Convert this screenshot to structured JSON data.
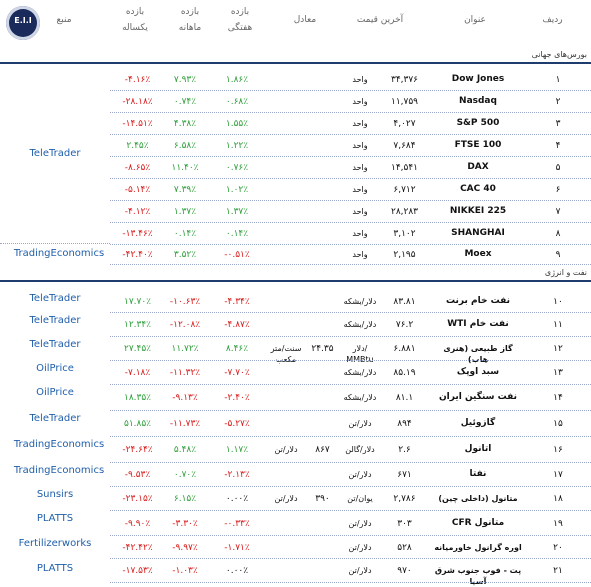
{
  "header": {
    "radif": "ردیف",
    "onvan": "عنوان",
    "akharin_gheymat": "آخرین قیمت",
    "moadel": "معادل",
    "bazeh_haftegi": [
      "بازده",
      "هفتگی"
    ],
    "bazeh_mahaneh": [
      "بازده",
      "ماهانه"
    ],
    "bazeh_yeksaleh": [
      "بازده",
      "یکساله"
    ],
    "manba": "منبع",
    "logo_text": "E.I.I"
  },
  "sections": {
    "world_markets": "بورس‌های جهانی",
    "oil_energy": "نفت و انرژی"
  },
  "rows": [
    {
      "n": "۱",
      "title": "Dow Jones",
      "latin": true,
      "price": "۳۴,۳۷۶",
      "unit": "واحد",
      "eq": "",
      "eq_unit": "",
      "w": "۱.۸۶٪",
      "m": "۷.۹۳٪",
      "y": "-۴.۱۶٪",
      "wc": "pos",
      "mc": "pos",
      "yc": "neg"
    },
    {
      "n": "۲",
      "title": "Nasdaq",
      "latin": true,
      "price": "۱۱,۷۵۹",
      "unit": "واحد",
      "eq": "",
      "eq_unit": "",
      "w": "۰.۶۸٪",
      "m": "۰.۷۴٪",
      "y": "-۲۸.۱۸٪",
      "wc": "pos",
      "mc": "pos",
      "yc": "neg"
    },
    {
      "n": "۳",
      "title": "S&P 500",
      "latin": true,
      "price": "۴,۰۲۷",
      "unit": "واحد",
      "eq": "",
      "eq_unit": "",
      "w": "۱.۵۵٪",
      "m": "۴.۳۸٪",
      "y": "-۱۴.۵۱٪",
      "wc": "pos",
      "mc": "pos",
      "yc": "neg"
    },
    {
      "n": "۴",
      "title": "FTSE 100",
      "latin": true,
      "price": "۷,۶۸۴",
      "unit": "واحد",
      "eq": "",
      "eq_unit": "",
      "w": "۱.۲۲٪",
      "m": "۶.۵۸٪",
      "y": "۲.۴۵٪",
      "wc": "pos",
      "mc": "pos",
      "yc": "pos"
    },
    {
      "n": "۵",
      "title": "DAX",
      "latin": true,
      "price": "۱۴,۵۴۱",
      "unit": "واحد",
      "eq": "",
      "eq_unit": "",
      "w": "۰.۷۶٪",
      "m": "۱۱.۴۰٪",
      "y": "-۸.۶۵٪",
      "wc": "pos",
      "mc": "pos",
      "yc": "neg"
    },
    {
      "n": "۶",
      "title": "CAC 40",
      "latin": true,
      "price": "۶,۷۱۲",
      "unit": "واحد",
      "eq": "",
      "eq_unit": "",
      "w": "۱.۰۲٪",
      "m": "۷.۳۹٪",
      "y": "-۵.۱۴٪",
      "wc": "pos",
      "mc": "pos",
      "yc": "neg"
    },
    {
      "n": "۷",
      "title": "NIKKEI 225",
      "latin": true,
      "price": "۲۸,۲۸۳",
      "unit": "واحد",
      "eq": "",
      "eq_unit": "",
      "w": "۱.۳۷٪",
      "m": "۱.۳۷٪",
      "y": "-۴.۱۲٪",
      "wc": "pos",
      "mc": "pos",
      "yc": "neg"
    },
    {
      "n": "۸",
      "title": "SHANGHAI",
      "latin": true,
      "price": "۳,۱۰۲",
      "unit": "واحد",
      "eq": "",
      "eq_unit": "",
      "w": "۰.۱۴٪",
      "m": "۰.۱۴٪",
      "y": "-۱۳.۴۶٪",
      "wc": "pos",
      "mc": "pos",
      "yc": "neg"
    },
    {
      "n": "۹",
      "title": "Moex",
      "latin": true,
      "price": "۲,۱۹۵",
      "unit": "واحد",
      "eq": "",
      "eq_unit": "",
      "w": "-۰.۵۱٪",
      "m": "۳.۵۲٪",
      "y": "-۴۲.۴۰٪",
      "wc": "neg",
      "mc": "pos",
      "yc": "neg"
    },
    {
      "n": "۱۰",
      "title": "نفت خام برنت",
      "latin": false,
      "price": "۸۳.۸۱",
      "unit": "دلار/بشکه",
      "eq": "",
      "eq_unit": "",
      "w": "-۴.۳۴٪",
      "m": "-۱۰.۶۳٪",
      "y": "۱۷.۷۰٪",
      "wc": "neg",
      "mc": "neg",
      "yc": "pos"
    },
    {
      "n": "۱۱",
      "title": "نفت خام WTI",
      "latin": false,
      "price": "۷۶.۲",
      "unit": "دلار/بشکه",
      "eq": "",
      "eq_unit": "",
      "w": "-۴.۸۷٪",
      "m": "-۱۲.۰۸٪",
      "y": "۱۲.۳۴٪",
      "wc": "neg",
      "mc": "neg",
      "yc": "pos"
    },
    {
      "n": "۱۲",
      "title": "گاز طبیعی (هنری هاب)",
      "latin": false,
      "price": "۶.۸۸۱",
      "unit": "دلار/ MMBtu",
      "eq": "۲۴.۳۵",
      "eq_unit": "سنت/متر مکعب",
      "w": "۸.۴۶٪",
      "m": "۱۱.۷۲٪",
      "y": "۲۷.۴۵٪",
      "wc": "pos",
      "mc": "pos",
      "yc": "pos"
    },
    {
      "n": "۱۳",
      "title": "سبد اوپک",
      "latin": false,
      "price": "۸۵.۱۹",
      "unit": "دلار/بشکه",
      "eq": "",
      "eq_unit": "",
      "w": "-۷.۷۰٪",
      "m": "-۱۱.۳۲٪",
      "y": "-۷.۱۸٪",
      "wc": "neg",
      "mc": "neg",
      "yc": "neg"
    },
    {
      "n": "۱۴",
      "title": "نفت سنگین ایران",
      "latin": false,
      "price": "۸۱.۱",
      "unit": "دلار/بشکه",
      "eq": "",
      "eq_unit": "",
      "w": "-۲.۴۰٪",
      "m": "-۹.۱۳٪",
      "y": "۱۸.۳۵٪",
      "wc": "neg",
      "mc": "neg",
      "yc": "pos"
    },
    {
      "n": "۱۵",
      "title": "گازوئیل",
      "latin": false,
      "price": "۸۹۴",
      "unit": "دلار/تن",
      "eq": "",
      "eq_unit": "",
      "w": "-۵.۲۷٪",
      "m": "-۱۱.۷۳٪",
      "y": "۵۱.۸۵٪",
      "wc": "neg",
      "mc": "neg",
      "yc": "pos"
    },
    {
      "n": "۱۶",
      "title": "اتانول",
      "latin": false,
      "price": "۲.۶",
      "unit": "دلار/گالن",
      "eq": "۸۶۷",
      "eq_unit": "دلار/تن",
      "w": "۱.۱۷٪",
      "m": "۵.۴۸٪",
      "y": "-۲۴.۶۴٪",
      "wc": "pos",
      "mc": "pos",
      "yc": "neg"
    },
    {
      "n": "۱۷",
      "title": "نفتا",
      "latin": false,
      "price": "۶۷۱",
      "unit": "دلار/تن",
      "eq": "",
      "eq_unit": "",
      "w": "-۲.۱۳٪",
      "m": "۰.۷۰٪",
      "y": "-۹.۵۳٪",
      "wc": "neg",
      "mc": "pos",
      "yc": "neg"
    },
    {
      "n": "۱۸",
      "title": "متانول (داخلی چین)",
      "latin": false,
      "price": "۲,۷۸۶",
      "unit": "یوان/تن",
      "eq": "۳۹۰",
      "eq_unit": "دلار/تن",
      "w": "۰.۰۰٪",
      "m": "۶.۱۵٪",
      "y": "-۲۳.۱۵٪",
      "wc": "zero",
      "mc": "pos",
      "yc": "neg"
    },
    {
      "n": "۱۹",
      "title": "متانول CFR",
      "latin": false,
      "price": "۳۰۳",
      "unit": "دلار/تن",
      "eq": "",
      "eq_unit": "",
      "w": "-۰.۳۳٪",
      "m": "-۳.۳۰٪",
      "y": "-۹.۹۰٪",
      "wc": "neg",
      "mc": "neg",
      "yc": "neg"
    },
    {
      "n": "۲۰",
      "title": "اوره گرانول خاورمیانه",
      "latin": false,
      "price": "۵۲۸",
      "unit": "دلار/تن",
      "eq": "",
      "eq_unit": "",
      "w": "-۱.۷۱٪",
      "m": "-۹.۹۷٪",
      "y": "-۴۲.۴۲٪",
      "wc": "neg",
      "mc": "neg",
      "yc": "neg"
    },
    {
      "n": "۲۱",
      "title": "پت - فوب جنوب شرق آسیا",
      "latin": false,
      "price": "۹۷۰",
      "unit": "دلار/تن",
      "eq": "",
      "eq_unit": "",
      "w": "۰.۰۰٪",
      "m": "-۱.۰۳٪",
      "y": "-۱۷.۵۳٪",
      "wc": "zero",
      "mc": "neg",
      "yc": "neg"
    }
  ],
  "sources": {
    "teletrader": "TeleTrader",
    "tradingeconomics": "TradingEconomics",
    "oilprice": "OilPrice",
    "sunsirs": "Sunsirs",
    "platts": "PLATTS",
    "fertilizerworks": "Fertilizerworks"
  },
  "colors": {
    "positive": "#2e9e3a",
    "negative": "#d81b1b",
    "zero": "#222222",
    "source": "#1f5faa",
    "rule": "#1f3c6e"
  }
}
